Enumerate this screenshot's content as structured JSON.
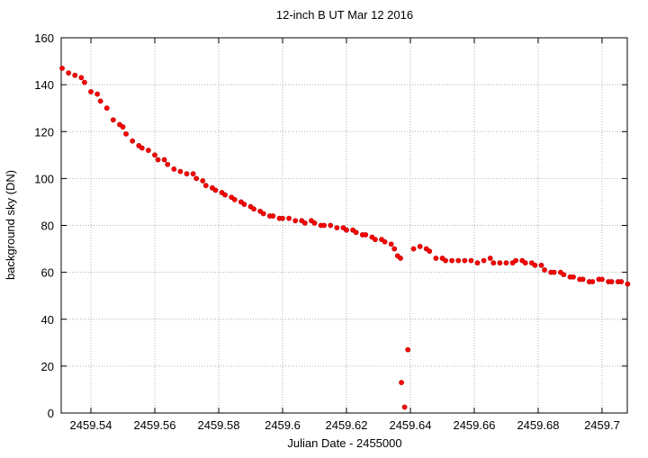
{
  "chart_data": {
    "type": "scatter",
    "title": "12-inch B UT Mar 12 2016",
    "x_label": "Julian Date - 2455000",
    "y_label": "background sky (DN)",
    "color": "#ff0000",
    "grid": true,
    "xlim": [
      2459.5307,
      2459.7079
    ],
    "ylim": [
      0,
      160
    ],
    "xticks": [
      2459.54,
      2459.56,
      2459.58,
      2459.6,
      2459.62,
      2459.64,
      2459.66,
      2459.68,
      2459.7
    ],
    "yticks": [
      0,
      20,
      40,
      60,
      80,
      100,
      120,
      140,
      160
    ],
    "x": [
      2459.531,
      2459.533,
      2459.535,
      2459.537,
      2459.538,
      2459.54,
      2459.542,
      2459.543,
      2459.545,
      2459.547,
      2459.549,
      2459.55,
      2459.551,
      2459.553,
      2459.555,
      2459.556,
      2459.558,
      2459.56,
      2459.561,
      2459.563,
      2459.564,
      2459.566,
      2459.568,
      2459.57,
      2459.572,
      2459.573,
      2459.575,
      2459.576,
      2459.578,
      2459.579,
      2459.581,
      2459.582,
      2459.584,
      2459.585,
      2459.587,
      2459.588,
      2459.59,
      2459.591,
      2459.593,
      2459.594,
      2459.596,
      2459.597,
      2459.599,
      2459.6,
      2459.602,
      2459.604,
      2459.606,
      2459.607,
      2459.609,
      2459.61,
      2459.612,
      2459.613,
      2459.615,
      2459.617,
      2459.619,
      2459.62,
      2459.622,
      2459.623,
      2459.625,
      2459.626,
      2459.628,
      2459.629,
      2459.631,
      2459.632,
      2459.634,
      2459.635,
      2459.636,
      2459.6369,
      2459.6372,
      2459.6382,
      2459.6392,
      2459.641,
      2459.643,
      2459.645,
      2459.646,
      2459.648,
      2459.65,
      2459.651,
      2459.653,
      2459.655,
      2459.657,
      2459.659,
      2459.661,
      2459.663,
      2459.665,
      2459.666,
      2459.668,
      2459.67,
      2459.672,
      2459.673,
      2459.675,
      2459.676,
      2459.678,
      2459.679,
      2459.681,
      2459.682,
      2459.684,
      2459.685,
      2459.687,
      2459.688,
      2459.69,
      2459.691,
      2459.693,
      2459.694,
      2459.696,
      2459.697,
      2459.699,
      2459.7,
      2459.702,
      2459.703,
      2459.705,
      2459.706,
      2459.708
    ],
    "values": [
      147,
      145,
      144,
      143,
      141,
      137,
      136,
      133,
      130,
      125,
      123,
      122,
      119,
      116,
      114,
      113,
      112,
      110,
      108,
      108,
      106,
      104,
      103,
      102,
      102,
      100,
      99,
      97,
      96,
      95,
      94,
      93,
      92,
      91,
      90,
      89,
      88,
      87,
      86,
      85,
      84,
      84,
      83,
      83,
      83,
      82,
      82,
      81,
      82,
      81,
      80,
      80,
      80,
      79,
      79,
      78,
      78,
      77,
      76,
      76,
      75,
      74,
      74,
      73,
      72,
      70,
      67,
      66,
      13,
      2.5,
      27,
      70,
      71,
      70,
      69,
      66,
      66,
      65,
      65,
      65,
      65,
      65,
      64,
      65,
      66,
      64,
      64,
      64,
      64,
      65,
      65,
      64,
      64,
      63,
      63,
      61,
      60,
      60,
      60,
      59,
      58,
      58,
      57,
      57,
      56,
      56,
      57,
      57,
      56,
      56,
      56,
      56,
      55
    ]
  }
}
